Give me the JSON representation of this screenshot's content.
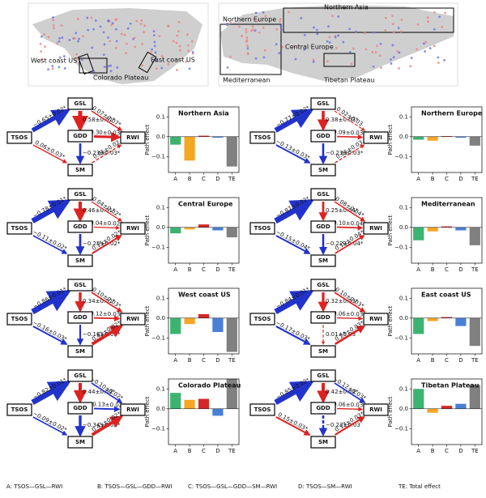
{
  "map": {
    "labels": [
      "Northern Asia",
      "Northern Europe",
      "Central Europe",
      "Mediterranean",
      "West coast US",
      "Colorado Plateau",
      "East coast US",
      "Tibetan Plateau"
    ]
  },
  "nodes": [
    "TSOS",
    "GSL",
    "GDD",
    "SM",
    "RWI"
  ],
  "diagrams": [
    {
      "labels": [
        "−0.65±0.02*",
        "0.58±0.02*",
        "0.07±0.07*",
        "0.30±0.03*",
        "−0.23±0.03*",
        "0.06±0.03*",
        "0.05±0.02"
      ]
    },
    {
      "labels": [
        "−0.78±0.01*",
        "0.46±0.01*",
        "0.04±0.02*",
        "0.04±0.02*",
        "−0.25±0.02*",
        "−0.11±0.02*",
        "0.15±0.02*"
      ]
    },
    {
      "labels": [
        "−0.86±0.01*",
        "0.34±0.02*",
        "0.10±0.03*",
        "0.12±0.03*",
        "−0.16±0.03*",
        "−0.16±0.03*",
        "0.42±0.02*"
      ]
    },
    {
      "labels": [
        "−0.82±0.01*",
        "0.44±0.02*",
        "−0.10±0.02*",
        "−0.13±0.02*",
        "−0.34±0.02*",
        "−0.09±0.02*",
        "0.41±0.02*"
      ]
    },
    {
      "labels": [
        "−0.77±0.02*",
        "0.38±0.03*",
        "0.02±0.03",
        "0.09±0.03*",
        "−0.23±0.03*",
        "−0.13±0.03*",
        "0.05±0.03"
      ]
    },
    {
      "labels": [
        "−0.87±0.02*",
        "0.25±0.04*",
        "0.08±0.04*",
        "0.10±0.04*",
        "−0.22±0.04*",
        "−0.15±0.04*",
        "0.10±0.04*"
      ]
    },
    {
      "labels": [
        "−0.84±0.01*",
        "0.32±0.03*",
        "0.10±0.03*",
        "0.06±0.03*",
        "0.01±0.03",
        "−0.17±0.03*",
        "0.23±0.03*"
      ]
    },
    {
      "labels": [
        "−0.85±0.02*",
        "0.42±0.02*",
        "−0.12±0.03*",
        "0.06±0.03*",
        "−0.23±0.03",
        "0.15±0.03*",
        "0.17±0.03*"
      ]
    }
  ],
  "chart_data": [
    {
      "type": "bar",
      "title": "Northern Asia",
      "ylabel": "Path effect",
      "categories": [
        "A",
        "B",
        "C",
        "D",
        "TE"
      ],
      "values": [
        -0.04,
        -0.12,
        0.005,
        -0.005,
        -0.15
      ],
      "colors": [
        "#3cb371",
        "#f5a623",
        "#d62728",
        "#4a7fd6",
        "#808080"
      ],
      "ylim": [
        -0.18,
        0.15
      ],
      "yticks": [
        0.1,
        {
          "value": 0,
          "label": "0.0"
        },
        {
          "value": -0.1,
          "label": "−0.1"
        }
      ]
    },
    {
      "type": "bar",
      "title": "Central Europe",
      "ylabel": "Path effect",
      "categories": [
        "A",
        "B",
        "C",
        "D",
        "TE"
      ],
      "values": [
        -0.03,
        -0.01,
        0.015,
        -0.015,
        -0.05
      ],
      "colors": [
        "#3cb371",
        "#f5a623",
        "#d62728",
        "#4a7fd6",
        "#808080"
      ],
      "ylim": [
        -0.18,
        0.15
      ],
      "yticks": [
        0.1,
        {
          "value": 0,
          "label": "0.0"
        },
        {
          "value": -0.1,
          "label": "−0.1"
        }
      ]
    },
    {
      "type": "bar",
      "title": "West coast US",
      "ylabel": "Path effect",
      "categories": [
        "A",
        "B",
        "C",
        "D",
        "TE"
      ],
      "values": [
        -0.08,
        -0.03,
        0.02,
        -0.07,
        -0.17
      ],
      "colors": [
        "#3cb371",
        "#f5a623",
        "#d62728",
        "#4a7fd6",
        "#808080"
      ],
      "ylim": [
        -0.18,
        0.15
      ],
      "yticks": [
        0.1,
        {
          "value": 0,
          "label": "0.0"
        },
        {
          "value": -0.1,
          "label": "−0.1"
        }
      ]
    },
    {
      "type": "bar",
      "title": "Colorado Plateau",
      "ylabel": "Path effect",
      "categories": [
        "A",
        "B",
        "C",
        "D",
        "TE"
      ],
      "values": [
        0.08,
        0.045,
        0.05,
        -0.035,
        0.15
      ],
      "colors": [
        "#3cb371",
        "#f5a623",
        "#d62728",
        "#4a7fd6",
        "#808080"
      ],
      "ylim": [
        -0.18,
        0.15
      ],
      "yticks": [
        0.1,
        {
          "value": 0,
          "label": "0.0"
        },
        {
          "value": -0.1,
          "label": "−0.1"
        }
      ]
    },
    {
      "type": "bar",
      "title": "Northern Europe",
      "ylabel": "Path effect",
      "categories": [
        "A",
        "B",
        "C",
        "D",
        "TE"
      ],
      "values": [
        -0.015,
        -0.02,
        0.003,
        -0.005,
        -0.045
      ],
      "colors": [
        "#3cb371",
        "#f5a623",
        "#d62728",
        "#4a7fd6",
        "#808080"
      ],
      "ylim": [
        -0.18,
        0.15
      ],
      "yticks": [
        0.1,
        {
          "value": 0,
          "label": "0.0"
        },
        {
          "value": -0.1,
          "label": "−0.1"
        }
      ]
    },
    {
      "type": "bar",
      "title": "Mediterranean",
      "ylabel": "Path effect",
      "categories": [
        "A",
        "B",
        "C",
        "D",
        "TE"
      ],
      "values": [
        -0.065,
        -0.02,
        0.005,
        -0.015,
        -0.09
      ],
      "colors": [
        "#3cb371",
        "#f5a623",
        "#d62728",
        "#4a7fd6",
        "#808080"
      ],
      "ylim": [
        -0.18,
        0.15
      ],
      "yticks": [
        0.1,
        {
          "value": 0,
          "label": "0.0"
        },
        {
          "value": -0.1,
          "label": "−0.1"
        }
      ]
    },
    {
      "type": "bar",
      "title": "East coast US",
      "ylabel": "Path effect",
      "categories": [
        "A",
        "B",
        "C",
        "D",
        "TE"
      ],
      "values": [
        -0.08,
        -0.015,
        0.005,
        -0.04,
        -0.14
      ],
      "colors": [
        "#3cb371",
        "#f5a623",
        "#d62728",
        "#4a7fd6",
        "#808080"
      ],
      "ylim": [
        -0.18,
        0.15
      ],
      "yticks": [
        0.1,
        {
          "value": 0,
          "label": "0.0"
        },
        {
          "value": -0.1,
          "label": "−0.1"
        }
      ]
    },
    {
      "type": "bar",
      "title": "Tibetan Plateau",
      "ylabel": "Path effect",
      "categories": [
        "A",
        "B",
        "C",
        "D",
        "TE"
      ],
      "values": [
        0.1,
        -0.02,
        0.015,
        0.025,
        0.12
      ],
      "colors": [
        "#3cb371",
        "#f5a623",
        "#d62728",
        "#4a7fd6",
        "#808080"
      ],
      "ylim": [
        -0.18,
        0.15
      ],
      "yticks": [
        0.1,
        {
          "value": 0,
          "label": "0.0"
        },
        {
          "value": -0.1,
          "label": "−0.1"
        }
      ]
    }
  ],
  "legend": [
    "A: TSOS—GSL—RWI",
    "B: TSOS—GSL—GDD—RWI",
    "C: TSOS—GSL—GDD—SM—RWI",
    "D: TSOS—SM—RWI",
    "TE: Total effect"
  ]
}
